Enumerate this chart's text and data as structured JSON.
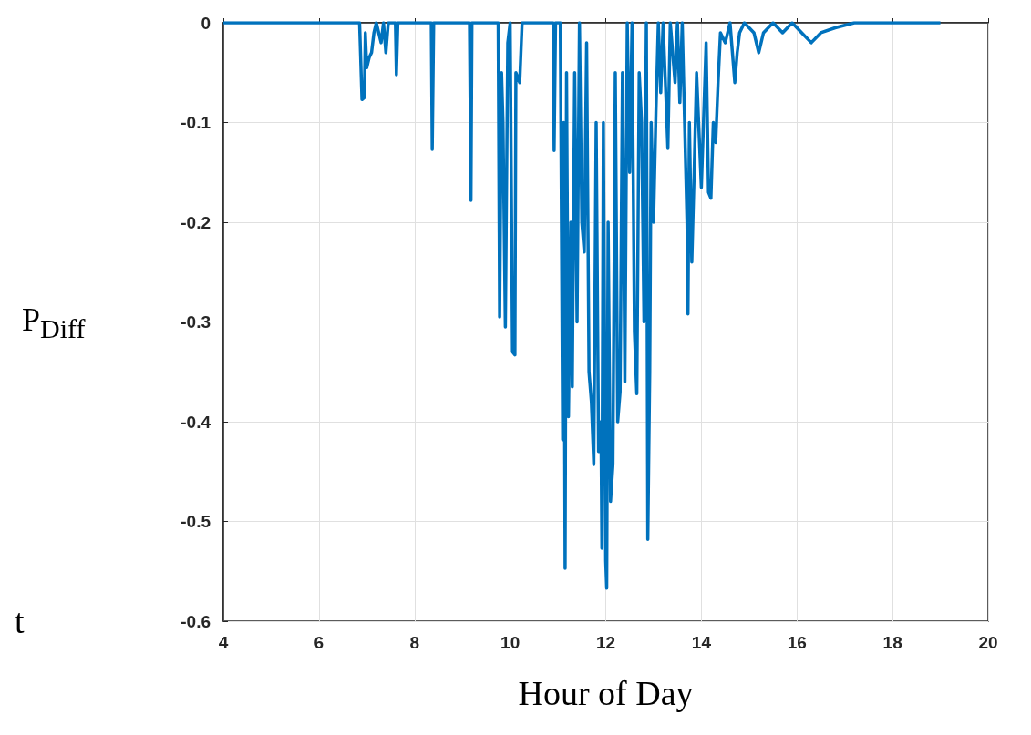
{
  "chart_data": {
    "type": "line",
    "xlabel": "Hour of Day",
    "ylabel": "P$_{Diff}$",
    "annotations": [
      "t"
    ],
    "x": [
      4,
      6.85,
      6.9,
      6.95,
      6.97,
      7.0,
      7.05,
      7.1,
      7.15,
      7.2,
      7.3,
      7.35,
      7.4,
      7.45,
      7.6,
      7.62,
      7.65,
      8.35,
      8.37,
      8.4,
      9.15,
      9.18,
      9.2,
      9.75,
      9.78,
      9.82,
      9.85,
      9.9,
      9.95,
      10.0,
      10.05,
      10.1,
      10.12,
      10.2,
      10.25,
      10.9,
      10.92,
      10.95,
      11.05,
      11.1,
      11.12,
      11.15,
      11.18,
      11.22,
      11.27,
      11.3,
      11.35,
      11.4,
      11.45,
      11.5,
      11.55,
      11.6,
      11.65,
      11.7,
      11.75,
      11.8,
      11.85,
      11.9,
      11.92,
      11.95,
      12.0,
      12.02,
      12.05,
      12.1,
      12.15,
      12.2,
      12.25,
      12.3,
      12.35,
      12.4,
      12.45,
      12.5,
      12.55,
      12.6,
      12.65,
      12.7,
      12.75,
      12.8,
      12.85,
      12.88,
      12.92,
      12.95,
      13.0,
      13.05,
      13.1,
      13.15,
      13.2,
      13.3,
      13.35,
      13.45,
      13.5,
      13.55,
      13.6,
      13.7,
      13.72,
      13.75,
      13.8,
      13.85,
      13.9,
      14.0,
      14.1,
      14.15,
      14.2,
      14.25,
      14.3,
      14.35,
      14.4,
      14.5,
      14.6,
      14.7,
      14.75,
      14.8,
      14.9,
      15.1,
      15.2,
      15.3,
      15.5,
      15.7,
      15.9,
      16.1,
      16.3,
      16.5,
      16.8,
      17.2,
      19
    ],
    "series": [
      {
        "color": "#0072bd",
        "values": [
          0,
          0,
          -0.077,
          -0.075,
          -0.01,
          -0.045,
          -0.035,
          -0.03,
          -0.01,
          0,
          -0.02,
          0,
          -0.03,
          0,
          0,
          -0.052,
          0,
          0,
          -0.127,
          0,
          0,
          -0.178,
          0,
          0,
          -0.295,
          -0.05,
          -0.1,
          -0.305,
          -0.02,
          0,
          -0.33,
          -0.333,
          -0.05,
          -0.06,
          0,
          0,
          -0.128,
          0,
          0,
          -0.418,
          -0.1,
          -0.547,
          -0.05,
          -0.395,
          -0.2,
          -0.365,
          -0.05,
          -0.3,
          0,
          -0.2,
          -0.23,
          -0.02,
          -0.35,
          -0.38,
          -0.443,
          -0.1,
          -0.43,
          -0.4,
          -0.527,
          -0.1,
          -0.54,
          -0.567,
          -0.2,
          -0.48,
          -0.443,
          -0.05,
          -0.4,
          -0.37,
          -0.05,
          -0.36,
          0,
          -0.15,
          0,
          -0.31,
          -0.372,
          -0.05,
          -0.1,
          -0.3,
          0,
          -0.518,
          -0.35,
          -0.1,
          -0.2,
          -0.09,
          0,
          -0.07,
          0,
          -0.126,
          0,
          -0.06,
          0,
          -0.08,
          0,
          -0.2,
          -0.292,
          -0.1,
          -0.24,
          -0.15,
          -0.05,
          -0.165,
          -0.02,
          -0.17,
          -0.176,
          -0.1,
          -0.12,
          -0.06,
          -0.01,
          -0.02,
          0,
          -0.06,
          -0.03,
          -0.01,
          0,
          -0.01,
          -0.03,
          -0.01,
          0,
          -0.01,
          0,
          -0.01,
          -0.02,
          -0.01,
          -0.005,
          0,
          0
        ]
      }
    ],
    "xlim": [
      4,
      20
    ],
    "xticks": [
      4,
      6,
      8,
      10,
      12,
      14,
      16,
      18,
      20
    ],
    "ylim": [
      -0.6,
      0
    ],
    "yticks": [
      -0.6,
      -0.5,
      -0.4,
      -0.3,
      -0.2,
      -0.1,
      0
    ],
    "grid": true,
    "marker": "none",
    "line_style": "solid"
  }
}
